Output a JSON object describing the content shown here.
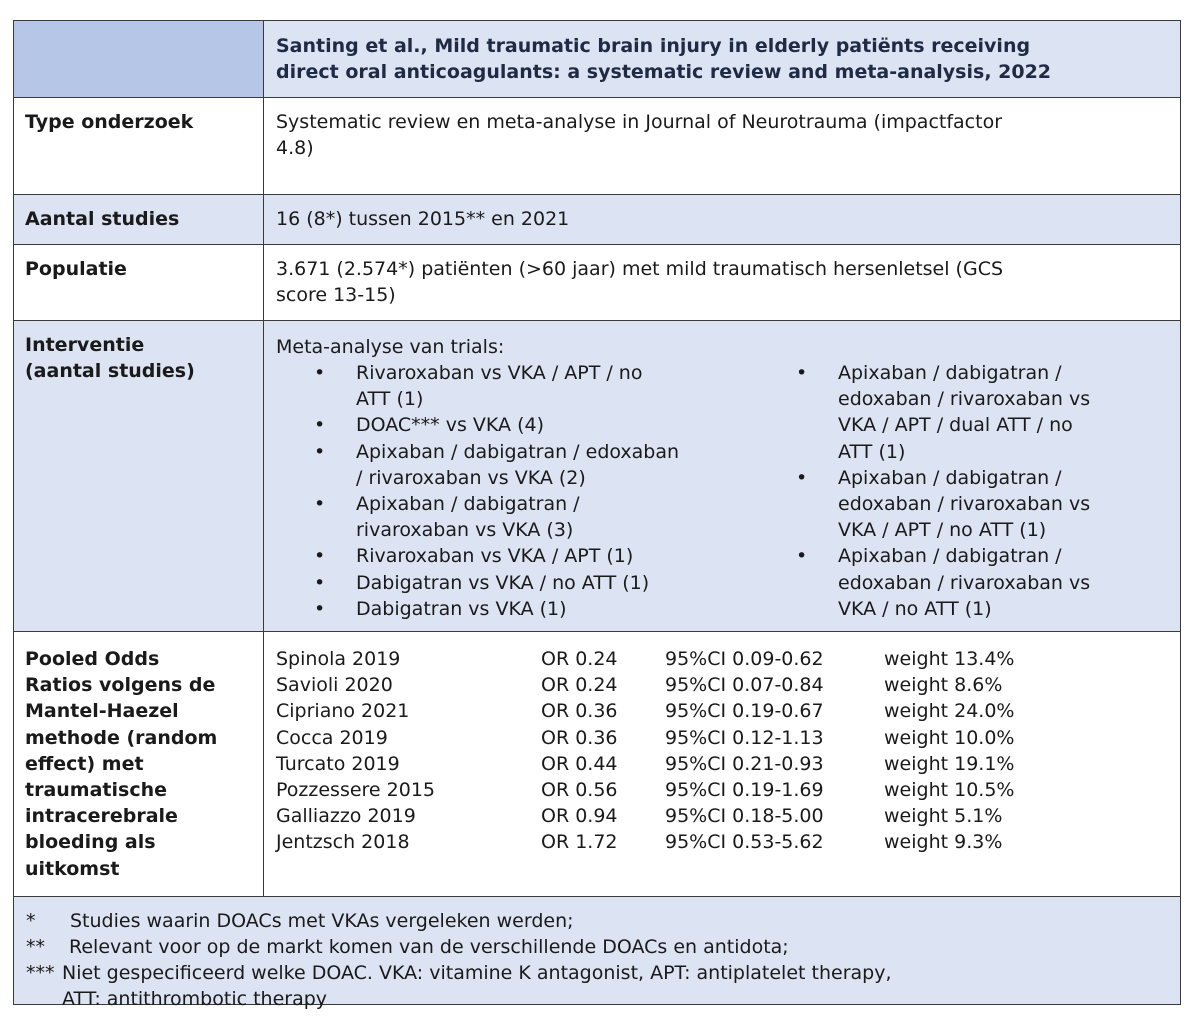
{
  "header": {
    "title_line1": "Santing et al., Mild traumatic brain injury in elderly patiënts receiving",
    "title_line2": "direct oral anticoagulants: a systematic review and meta-analysis, 2022"
  },
  "rows": {
    "type": {
      "label": "Type onderzoek",
      "value_line1": "Systematic review en meta-analyse in Journal of Neurotrauma (impactfactor",
      "value_line2": "4.8)"
    },
    "studies": {
      "label": "Aantal studies",
      "value": "16 (8*) tussen 2015** en 2021"
    },
    "population": {
      "label": "Populatie",
      "value_line1": "3.671 (2.574*) patiënten (>60 jaar) met mild traumatisch hersenletsel (GCS",
      "value_line2": "score 13-15)"
    },
    "intervention": {
      "label_line1": "Interventie",
      "label_line2": "(aantal studies)",
      "intro": "Meta-analyse van trials:",
      "bullet": "•",
      "left_items": [
        [
          "Rivaroxaban vs VKA / APT / no",
          "ATT (1)"
        ],
        [
          "DOAC*** vs VKA (4)"
        ],
        [
          "Apixaban / dabigatran / edoxaban",
          "/ rivaroxaban vs VKA (2)"
        ],
        [
          "Apixaban / dabigatran /",
          "rivaroxaban vs VKA (3)"
        ],
        [
          "Rivaroxaban vs VKA / APT (1)"
        ],
        [
          "Dabigatran vs VKA / no ATT (1)"
        ],
        [
          "Dabigatran vs VKA (1)"
        ]
      ],
      "right_items": [
        [
          "Apixaban / dabigatran /",
          "edoxaban / rivaroxaban vs",
          "VKA / APT / dual ATT / no",
          "ATT (1)"
        ],
        [
          "Apixaban / dabigatran /",
          "edoxaban / rivaroxaban vs",
          "VKA / APT / no ATT (1)"
        ],
        [
          "Apixaban / dabigatran /",
          "edoxaban / rivaroxaban vs",
          "VKA / no ATT (1)"
        ]
      ]
    },
    "pooled": {
      "label_lines": [
        "Pooled Odds",
        "Ratios volgens de",
        "Mantel-Haezel",
        "methode (random",
        "effect) met",
        "traumatische",
        "intracerebrale",
        "bloeding als",
        "uitkomst"
      ],
      "entries": [
        {
          "study": "Spinola 2019",
          "or": "OR 0.24",
          "ci": "95%CI 0.09-0.62",
          "weight": "weight 13.4%"
        },
        {
          "study": "Savioli 2020",
          "or": "OR 0.24",
          "ci": "95%CI 0.07-0.84",
          "weight": "weight 8.6%"
        },
        {
          "study": "Cipriano 2021",
          "or": "OR 0.36",
          "ci": "95%CI 0.19-0.67",
          "weight": "weight 24.0%"
        },
        {
          "study": "Cocca 2019",
          "or": "OR 0.36",
          "ci": "95%CI 0.12-1.13",
          "weight": "weight 10.0%"
        },
        {
          "study": "Turcato 2019",
          "or": "OR 0.44",
          "ci": "95%CI 0.21-0.93",
          "weight": "weight 19.1%"
        },
        {
          "study": "Pozzessere 2015",
          "or": "OR 0.56",
          "ci": "95%CI 0.19-1.69",
          "weight": "weight 10.5%"
        },
        {
          "study": "Galliazzo 2019",
          "or": "OR 0.94",
          "ci": "95%CI 0.18-5.00",
          "weight": "weight 5.1%"
        },
        {
          "study": "Jentzsch 2018",
          "or": "OR 1.72",
          "ci": "95%CI 0.53-5.62",
          "weight": "weight 9.3%"
        }
      ]
    }
  },
  "footnotes": {
    "f1_mark": "*",
    "f1_text": "Studies waarin DOACs met VKAs vergeleken werden;",
    "f2_mark": "**",
    "f2_text": "Relevant voor op de markt komen van de verschillende DOACs en antidota;",
    "f3_mark": "***",
    "f3_text": "Niet gespecificeerd welke DOAC. VKA: vitamine K antagonist, APT: antiplatelet therapy,",
    "f3_text2": "ATT: antithrombotic therapy"
  },
  "colors": {
    "header_left": "#b5c6e6",
    "row_blue": "#dce3f2",
    "border": "#3a3a3a"
  }
}
